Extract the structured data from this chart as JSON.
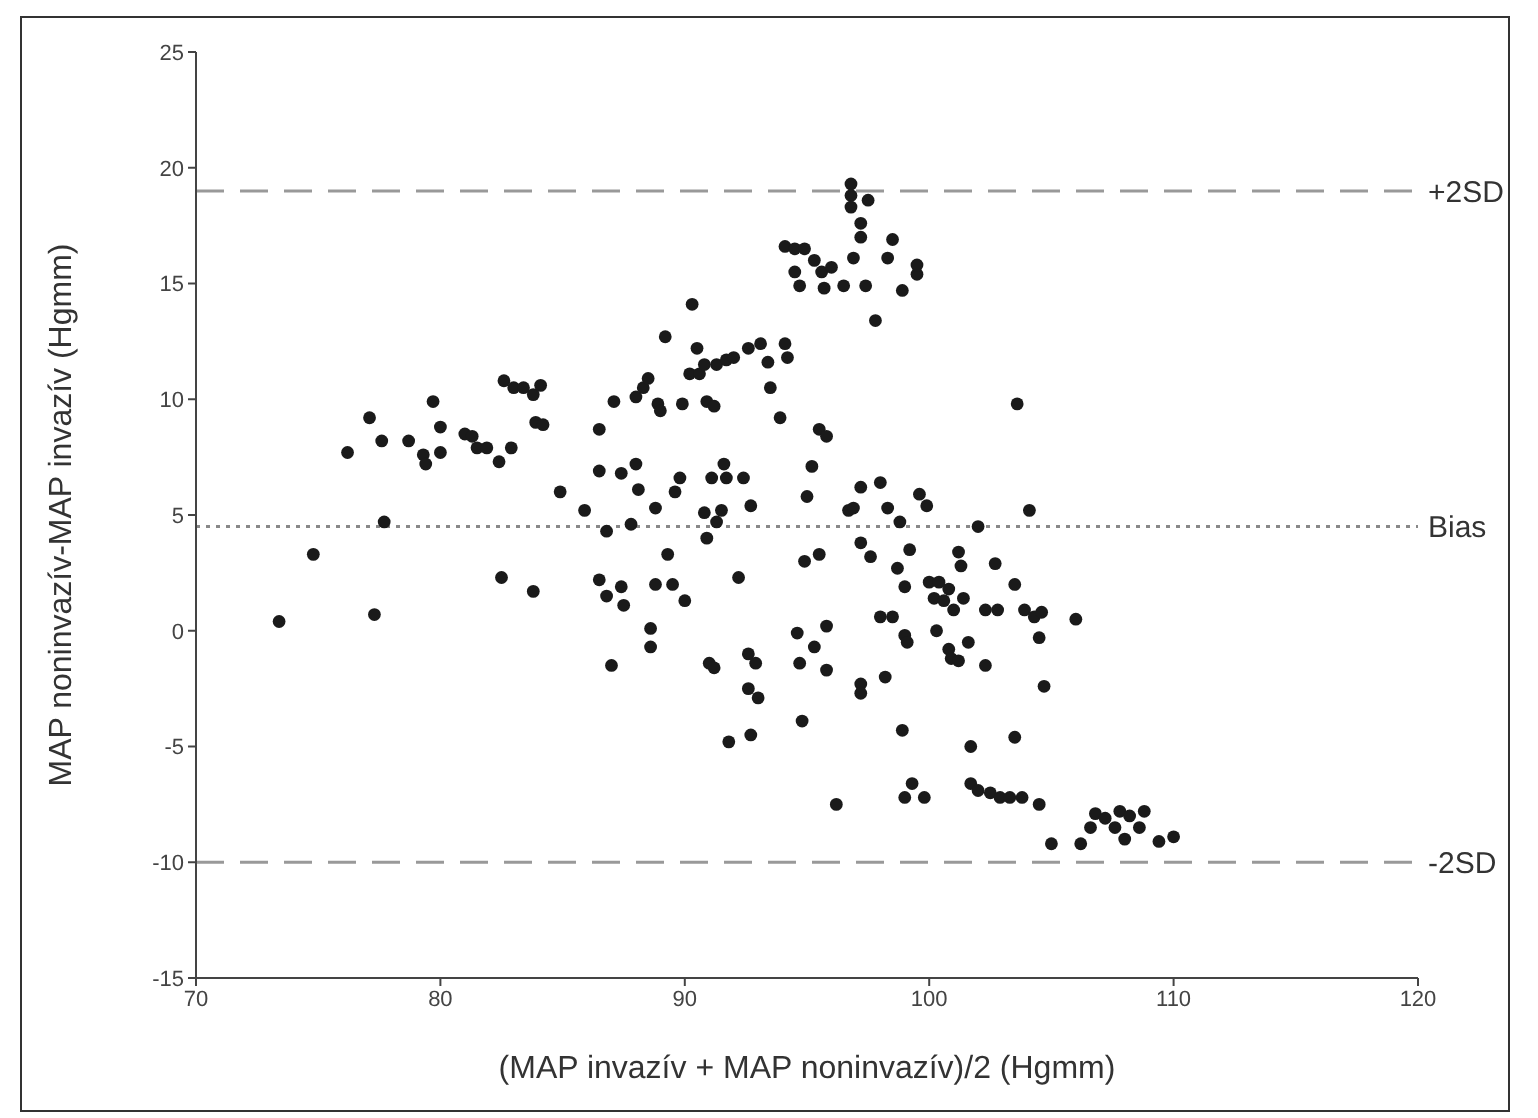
{
  "chart_data": {
    "type": "scatter",
    "xlabel": "(MAP invazív + MAP noninvazív)/2 (Hgmm)",
    "ylabel": "MAP noninvazív-MAP invazív (Hgmm)",
    "xlim": [
      70,
      120
    ],
    "xticks": [
      70,
      80,
      90,
      100,
      110,
      120
    ],
    "ylim": [
      -15,
      25
    ],
    "yticks": [
      -15,
      -10,
      -5,
      0,
      5,
      10,
      15,
      20,
      25
    ],
    "grid": false,
    "legend": false,
    "marker": "circle",
    "ref_lines": [
      {
        "axis": "y",
        "value": 19,
        "label": "+2SD",
        "color": "#999999",
        "line_style": "dashed"
      },
      {
        "axis": "y",
        "value": 4.5,
        "label": "Bias",
        "color": "#888888",
        "line_style": "dotted"
      },
      {
        "axis": "y",
        "value": -10,
        "label": "-2SD",
        "color": "#999999",
        "line_style": "dashed"
      }
    ],
    "series": [
      {
        "color": "#1a1a1a",
        "x": [
          73.4,
          74.8,
          76.2,
          77.1,
          77.3,
          77.6,
          77.7,
          78.7,
          79.3,
          79.4,
          79.7,
          80.0,
          80.0,
          81.0,
          81.3,
          81.5,
          81.9,
          82.4,
          82.5,
          82.6,
          83.0,
          82.9,
          83.4,
          83.8,
          84.1,
          83.8,
          83.9,
          84.2,
          84.9,
          85.9,
          86.5,
          86.5,
          86.8,
          86.5,
          86.8,
          87.0,
          87.1,
          87.4,
          87.4,
          87.5,
          87.8,
          88.0,
          88.0,
          88.1,
          88.3,
          88.5,
          88.8,
          88.6,
          88.6,
          88.8,
          88.9,
          89.0,
          89.2,
          89.3,
          89.5,
          89.6,
          89.8,
          89.9,
          90.0,
          90.3,
          90.5,
          90.2,
          90.6,
          90.8,
          90.8,
          90.9,
          90.9,
          91.2,
          91.1,
          91.0,
          91.2,
          91.3,
          91.6,
          91.7,
          91.5,
          91.8,
          91.3,
          91.7,
          92.0,
          92.2,
          92.4,
          92.6,
          92.7,
          92.6,
          92.9,
          92.6,
          93.0,
          92.7,
          93.1,
          93.5,
          93.4,
          93.9,
          94.1,
          94.2,
          94.1,
          94.5,
          94.9,
          94.5,
          94.7,
          94.6,
          94.7,
          94.8,
          94.9,
          95.0,
          95.2,
          95.3,
          95.3,
          95.6,
          95.7,
          95.5,
          95.8,
          95.5,
          95.8,
          95.8,
          96.0,
          96.2,
          96.5,
          96.7,
          96.8,
          96.8,
          96.8,
          96.9,
          96.9,
          97.2,
          97.2,
          97.2,
          97.2,
          97.2,
          97.2,
          97.4,
          97.5,
          97.8,
          97.6,
          98.0,
          98.0,
          98.2,
          98.3,
          98.3,
          98.5,
          98.5,
          98.8,
          98.7,
          98.9,
          98.9,
          99.0,
          99.0,
          99.1,
          99.2,
          99.0,
          99.3,
          99.5,
          99.5,
          99.6,
          99.8,
          99.9,
          100.0,
          100.2,
          100.3,
          100.4,
          100.6,
          100.8,
          100.8,
          101.0,
          100.9,
          101.2,
          101.3,
          101.4,
          101.2,
          101.6,
          101.7,
          101.7,
          102.0,
          102.0,
          102.3,
          102.3,
          102.5,
          102.7,
          102.8,
          102.9,
          103.3,
          103.5,
          103.5,
          103.6,
          103.8,
          103.9,
          104.1,
          104.3,
          104.5,
          104.5,
          104.6,
          104.7,
          105.0,
          106.0,
          106.2,
          106.6,
          106.8,
          107.2,
          107.6,
          107.8,
          108.0,
          108.2,
          108.6,
          108.8,
          109.4,
          110.0
        ],
        "values": [
          0.4,
          3.3,
          7.7,
          9.2,
          0.7,
          8.2,
          4.7,
          8.2,
          7.6,
          7.2,
          9.9,
          8.8,
          7.7,
          8.5,
          8.4,
          7.9,
          7.9,
          7.3,
          2.3,
          10.8,
          10.5,
          7.9,
          10.5,
          10.2,
          10.6,
          1.7,
          9.0,
          8.9,
          6.0,
          5.2,
          6.9,
          8.7,
          4.3,
          2.2,
          1.5,
          -1.5,
          9.9,
          6.8,
          1.9,
          1.1,
          4.6,
          7.2,
          10.1,
          6.1,
          10.5,
          10.9,
          5.3,
          0.1,
          -0.7,
          2.0,
          9.8,
          9.5,
          12.7,
          3.3,
          2.0,
          6.0,
          6.6,
          9.8,
          1.3,
          14.1,
          12.2,
          11.1,
          11.1,
          11.5,
          5.1,
          4.0,
          9.9,
          9.7,
          6.6,
          -1.4,
          -1.6,
          4.7,
          7.2,
          6.6,
          5.2,
          -4.8,
          11.5,
          11.7,
          11.8,
          2.3,
          6.6,
          12.2,
          5.4,
          -1.0,
          -1.4,
          -2.5,
          -2.9,
          -4.5,
          12.4,
          10.5,
          11.6,
          9.2,
          12.4,
          11.8,
          16.6,
          16.5,
          16.5,
          15.5,
          14.9,
          -0.1,
          -1.4,
          -3.9,
          3.0,
          5.8,
          7.1,
          -0.7,
          16.0,
          15.5,
          14.8,
          8.7,
          8.4,
          3.3,
          0.2,
          -1.7,
          15.7,
          -7.5,
          14.9,
          5.2,
          19.3,
          18.8,
          18.3,
          16.1,
          5.3,
          17.6,
          17.0,
          3.8,
          6.2,
          -2.3,
          -2.7,
          14.9,
          18.6,
          13.4,
          3.2,
          6.4,
          0.6,
          -2.0,
          16.1,
          5.3,
          0.6,
          16.9,
          4.7,
          2.7,
          -4.3,
          14.7,
          1.9,
          -0.2,
          -0.5,
          3.5,
          -7.2,
          -6.6,
          15.4,
          15.8,
          5.9,
          -7.2,
          5.4,
          2.1,
          1.4,
          0.0,
          2.1,
          1.3,
          1.8,
          -0.8,
          0.9,
          -1.2,
          3.4,
          2.8,
          1.4,
          -1.3,
          -0.5,
          -5.0,
          -6.6,
          4.5,
          -6.9,
          0.9,
          -1.5,
          -7.0,
          2.9,
          0.9,
          -7.2,
          -7.2,
          2.0,
          -4.6,
          9.8,
          -7.2,
          0.9,
          5.2,
          0.6,
          -7.5,
          -0.3,
          0.8,
          -2.4,
          -9.2,
          0.5,
          -9.2,
          -8.5,
          -7.9,
          -8.1,
          -8.5,
          -7.8,
          -9.0,
          -8.0,
          -8.5,
          -7.8,
          -9.1,
          -8.9
        ]
      }
    ]
  }
}
